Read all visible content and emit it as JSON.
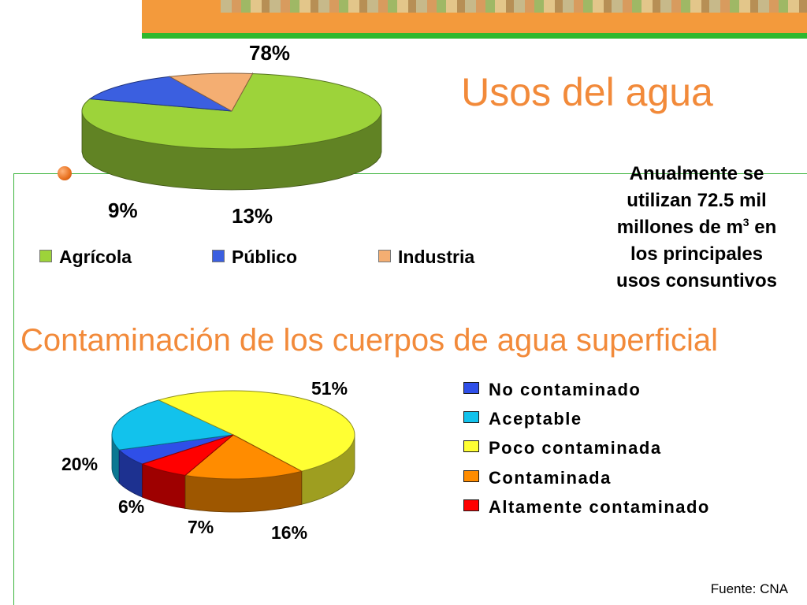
{
  "slide": {
    "title": "Usos del agua",
    "info_line1": "Anualmente se",
    "info_line2": "utilizan 72.5 mil",
    "info_line3a": "millones de m",
    "info_line3_sup": "3",
    "info_line3b": " en",
    "info_line4": "los principales",
    "info_line5": "usos consuntivos",
    "subtitle": "Contaminación de los cuerpos de agua superficial",
    "source": "Fuente: CNA"
  },
  "chart_data": [
    {
      "type": "pie",
      "title": "",
      "categories": [
        "Agrícola",
        "Público",
        "Industria"
      ],
      "values": [
        78,
        13,
        9
      ],
      "labels": [
        "78%",
        "13%",
        "9%"
      ],
      "colors": [
        "#9dd33a",
        "#3b5fe0",
        "#f4ae72"
      ],
      "legend": "bottom"
    },
    {
      "type": "pie",
      "title": "",
      "categories": [
        "No contaminado",
        "Aceptable",
        "Poco contaminada",
        "Contaminada",
        "Altamente contaminado"
      ],
      "values": [
        6,
        20,
        51,
        16,
        7
      ],
      "labels": [
        "6%",
        "20%",
        "51%",
        "16%",
        "7%"
      ],
      "colors": [
        "#2f4fe8",
        "#12c2ec",
        "#ffff33",
        "#ff8c00",
        "#ff0000"
      ],
      "legend": "right"
    }
  ]
}
